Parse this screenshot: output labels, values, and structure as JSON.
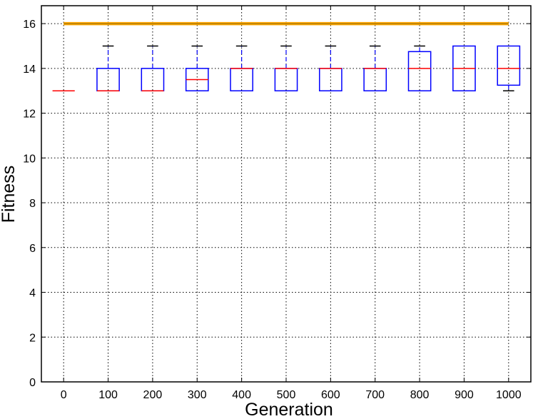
{
  "chart_data": {
    "type": "boxplot",
    "xlabel": "Generation",
    "ylabel": "Fitness",
    "categories": [
      "0",
      "100",
      "200",
      "300",
      "400",
      "500",
      "600",
      "700",
      "800",
      "900",
      "1000"
    ],
    "ylim": [
      0,
      16.8
    ],
    "yticks": [
      0,
      2,
      4,
      6,
      8,
      10,
      12,
      14,
      16
    ],
    "grid": true,
    "boxes": [
      {
        "whislo": 13,
        "q1": 13,
        "med": 13,
        "q3": 13,
        "whishi": 13
      },
      {
        "whislo": 13,
        "q1": 13,
        "med": 13,
        "q3": 14,
        "whishi": 15
      },
      {
        "whislo": 13,
        "q1": 13,
        "med": 13,
        "q3": 14,
        "whishi": 15
      },
      {
        "whislo": 13,
        "q1": 13,
        "med": 13.5,
        "q3": 14,
        "whishi": 15
      },
      {
        "whislo": 13,
        "q1": 13,
        "med": 14,
        "q3": 14,
        "whishi": 15
      },
      {
        "whislo": 13,
        "q1": 13,
        "med": 14,
        "q3": 14,
        "whishi": 15
      },
      {
        "whislo": 13,
        "q1": 13,
        "med": 14,
        "q3": 14,
        "whishi": 15
      },
      {
        "whislo": 13,
        "q1": 13,
        "med": 14,
        "q3": 14,
        "whishi": 15
      },
      {
        "whislo": 13,
        "q1": 13,
        "med": 14,
        "q3": 14.75,
        "whishi": 15
      },
      {
        "whislo": 13,
        "q1": 13,
        "med": 14,
        "q3": 15,
        "whishi": 15
      },
      {
        "whislo": 13,
        "q1": 13.25,
        "med": 14,
        "q3": 15,
        "whishi": 15
      }
    ],
    "reference_line": {
      "y": 16,
      "color": "#ffa500"
    },
    "colors": {
      "box": "#0000ff",
      "median": "#ff0000",
      "caps": "#000000",
      "whiskers": "#0000ff"
    }
  }
}
